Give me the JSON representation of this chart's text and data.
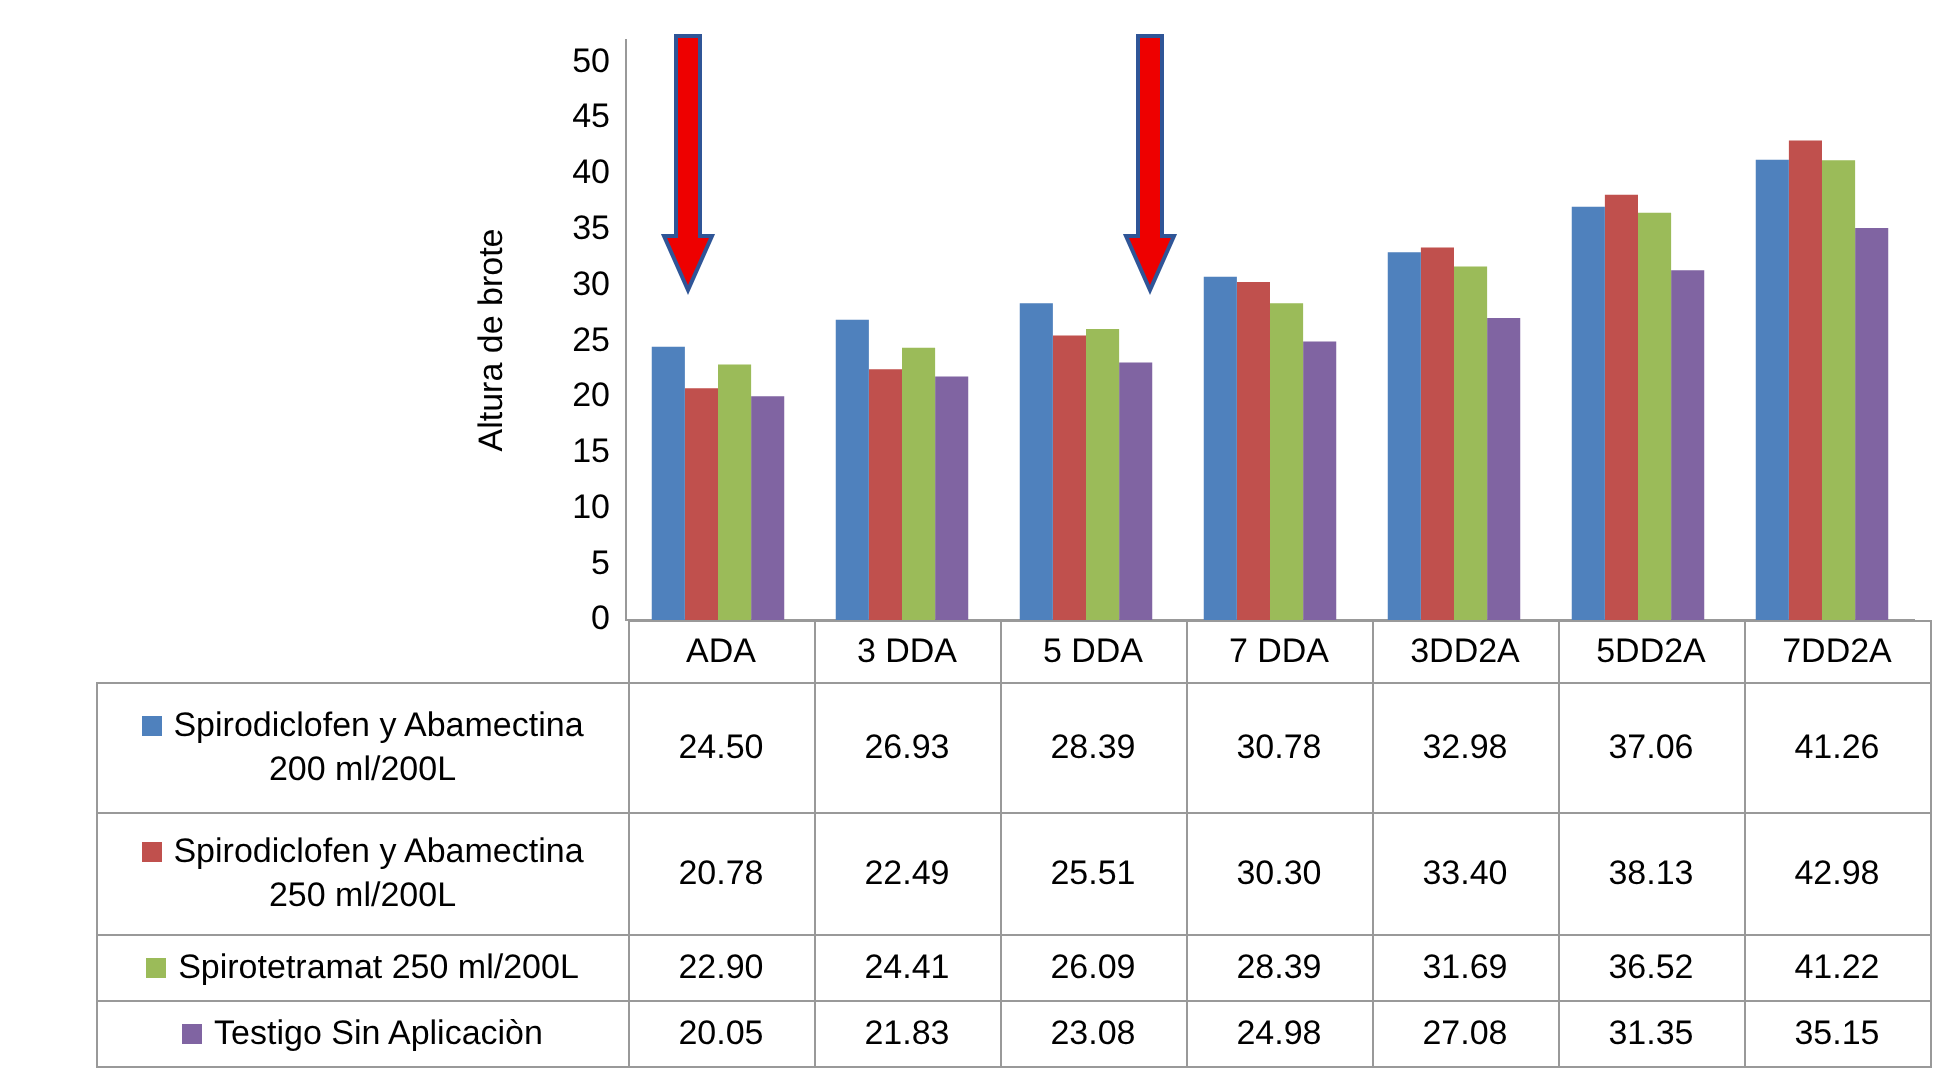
{
  "chart_data": {
    "type": "bar",
    "ylabel": "Altura de brote",
    "categories": [
      "ADA",
      "3 DDA",
      "5 DDA",
      "7 DDA",
      "3DD2A",
      "5DD2A",
      "7DD2A"
    ],
    "series": [
      {
        "name": "Spirodiclofen y Abamectina 200 ml/200L",
        "color": "#4f81bd",
        "values": [
          24.5,
          26.93,
          28.39,
          30.78,
          32.98,
          37.06,
          41.26
        ],
        "value_labels": [
          "24.50",
          "26.93",
          "28.39",
          "30.78",
          "32.98",
          "37.06",
          "41.26"
        ]
      },
      {
        "name": "Spirodiclofen y Abamectina 250 ml/200L",
        "color": "#c0504d",
        "values": [
          20.78,
          22.49,
          25.51,
          30.3,
          33.4,
          38.13,
          42.98
        ],
        "value_labels": [
          "20.78",
          "22.49",
          "25.51",
          "30.30",
          "33.40",
          "38.13",
          "42.98"
        ]
      },
      {
        "name": "Spirotetramat 250 ml/200L",
        "color": "#9bbb59",
        "values": [
          22.9,
          24.41,
          26.09,
          28.39,
          31.69,
          36.52,
          41.22
        ],
        "value_labels": [
          "22.90",
          "24.41",
          "26.09",
          "28.39",
          "31.69",
          "36.52",
          "41.22"
        ]
      },
      {
        "name": "Testigo Sin Aplicaciòn",
        "color": "#8064a2",
        "values": [
          20.05,
          21.83,
          23.08,
          24.98,
          27.08,
          31.35,
          35.15
        ],
        "value_labels": [
          "20.05",
          "21.83",
          "23.08",
          "24.98",
          "27.08",
          "31.35",
          "35.15"
        ]
      }
    ],
    "ylim": [
      0,
      52
    ],
    "yticks": [
      0,
      5,
      10,
      15,
      20,
      25,
      30,
      35,
      40,
      45,
      50
    ],
    "grid": false,
    "legend": "bottom"
  }
}
